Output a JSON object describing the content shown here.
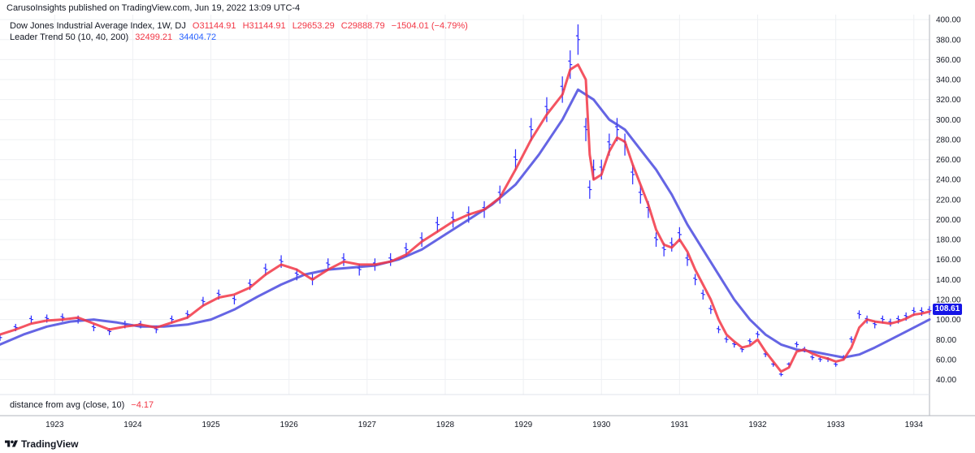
{
  "header": {
    "text": "CarusoInsights published on TradingView.com, Jun 19, 2022 13:09 UTC-4"
  },
  "legend": {
    "main": {
      "title": "Dow Jones Industrial Average Index, 1W, DJ",
      "open": "O31144.91",
      "high": "H31144.91",
      "low": "L29653.29",
      "close": "C29888.79",
      "change": "−1504.01 (−4.79%)"
    },
    "indicator": {
      "title": "Leader Trend 50 (10, 40, 200)",
      "value_red": "32499.21",
      "value_blue": "34404.72"
    }
  },
  "lower_indicator": {
    "title": "distance from avg (close, 10)",
    "value": "−4.17"
  },
  "price_tag": {
    "value": "108.61",
    "color": "#1515e6"
  },
  "footer": {
    "brand": "TradingView",
    "logo_icon": "tradingview-logo-icon"
  },
  "colors": {
    "bars": "#2a2aff",
    "short_ma": "#f23645",
    "long_ma": "#4a4adf",
    "grid": "#eef0f3"
  },
  "chart_data": {
    "type": "line",
    "title": "Dow Jones Industrial Average Index, 1W, DJ",
    "y_ticks": [
      40,
      60,
      80,
      100,
      120,
      140,
      160,
      180,
      200,
      220,
      240,
      260,
      280,
      300,
      320,
      340,
      360,
      380,
      400
    ],
    "y_tick_labels": [
      "40.00",
      "60.00",
      "80.00",
      "100.00",
      "120.00",
      "140.00",
      "160.00",
      "180.00",
      "200.00",
      "220.00",
      "240.00",
      "260.00",
      "280.00",
      "300.00",
      "320.00",
      "340.00",
      "360.00",
      "380.00",
      "400.00"
    ],
    "ylim": [
      25,
      405
    ],
    "x_range": [
      1922.3,
      1934.2
    ],
    "x_ticks": [
      1923,
      1924,
      1925,
      1926,
      1927,
      1928,
      1929,
      1930,
      1931,
      1932,
      1933,
      1934
    ],
    "x_tick_labels": [
      "1923",
      "1924",
      "1925",
      "1926",
      "1927",
      "1928",
      "1929",
      "1930",
      "1931",
      "1932",
      "1933",
      "1934"
    ],
    "grid": true,
    "series": [
      {
        "style": "ohlc-bars",
        "x": [
          1922.3,
          1922.5,
          1922.7,
          1922.9,
          1923.1,
          1923.3,
          1923.5,
          1923.7,
          1923.9,
          1924.1,
          1924.3,
          1924.5,
          1924.7,
          1924.9,
          1925.1,
          1925.3,
          1925.5,
          1925.7,
          1925.9,
          1926.1,
          1926.3,
          1926.5,
          1926.7,
          1926.9,
          1927.1,
          1927.3,
          1927.5,
          1927.7,
          1927.9,
          1928.1,
          1928.3,
          1928.5,
          1928.7,
          1928.9,
          1929.1,
          1929.3,
          1929.5,
          1929.6,
          1929.7,
          1929.8,
          1929.85,
          1929.9,
          1930.0,
          1930.1,
          1930.2,
          1930.3,
          1930.4,
          1930.5,
          1930.6,
          1930.7,
          1930.8,
          1930.9,
          1931.0,
          1931.1,
          1931.2,
          1931.3,
          1931.4,
          1931.5,
          1931.6,
          1931.7,
          1931.8,
          1931.9,
          1932.0,
          1932.1,
          1932.2,
          1932.3,
          1932.4,
          1932.5,
          1932.6,
          1932.7,
          1932.8,
          1932.9,
          1933.0,
          1933.1,
          1933.2,
          1933.3,
          1933.4,
          1933.5,
          1933.6,
          1933.7,
          1933.8,
          1933.9,
          1934.0,
          1934.1,
          1934.2
        ],
        "values": [
          82,
          92,
          100,
          101,
          102,
          100,
          92,
          88,
          95,
          95,
          90,
          100,
          105,
          118,
          125,
          120,
          135,
          150,
          158,
          145,
          140,
          155,
          160,
          150,
          155,
          160,
          170,
          180,
          195,
          200,
          205,
          210,
          225,
          260,
          290,
          310,
          330,
          355,
          380,
          290,
          230,
          250,
          250,
          275,
          290,
          275,
          245,
          225,
          210,
          180,
          170,
          175,
          185,
          160,
          140,
          125,
          110,
          90,
          80,
          75,
          70,
          78,
          85,
          65,
          55,
          45,
          55,
          75,
          70,
          62,
          60,
          60,
          55,
          62,
          80,
          105,
          100,
          95,
          100,
          97,
          100,
          103,
          108,
          108,
          109
        ]
      },
      {
        "style": "line",
        "color": "#f23645",
        "x": [
          1922.3,
          1922.5,
          1922.7,
          1922.9,
          1923.1,
          1923.3,
          1923.5,
          1923.7,
          1923.9,
          1924.1,
          1924.3,
          1924.5,
          1924.7,
          1924.9,
          1925.1,
          1925.3,
          1925.5,
          1925.7,
          1925.9,
          1926.1,
          1926.3,
          1926.5,
          1926.7,
          1926.9,
          1927.1,
          1927.3,
          1927.5,
          1927.7,
          1927.9,
          1928.1,
          1928.3,
          1928.5,
          1928.7,
          1928.9,
          1929.1,
          1929.3,
          1929.5,
          1929.6,
          1929.7,
          1929.8,
          1929.85,
          1929.9,
          1930.0,
          1930.1,
          1930.2,
          1930.3,
          1930.4,
          1930.5,
          1930.6,
          1930.7,
          1930.8,
          1930.9,
          1931.0,
          1931.1,
          1931.2,
          1931.3,
          1931.4,
          1931.5,
          1931.6,
          1931.7,
          1931.8,
          1931.9,
          1932.0,
          1932.1,
          1932.2,
          1932.3,
          1932.4,
          1932.5,
          1932.6,
          1932.7,
          1932.8,
          1932.9,
          1933.0,
          1933.1,
          1933.2,
          1933.3,
          1933.4,
          1933.5,
          1933.6,
          1933.7,
          1933.8,
          1933.9,
          1934.0,
          1934.1,
          1934.2
        ],
        "values": [
          85,
          90,
          96,
          99,
          100,
          102,
          96,
          90,
          93,
          95,
          92,
          97,
          102,
          114,
          122,
          125,
          132,
          145,
          155,
          150,
          140,
          150,
          158,
          155,
          155,
          158,
          165,
          178,
          188,
          198,
          205,
          210,
          222,
          250,
          280,
          305,
          325,
          350,
          355,
          340,
          265,
          240,
          245,
          268,
          282,
          278,
          255,
          235,
          215,
          190,
          175,
          172,
          180,
          168,
          150,
          135,
          120,
          100,
          85,
          78,
          72,
          74,
          80,
          68,
          58,
          48,
          52,
          68,
          70,
          66,
          63,
          61,
          58,
          60,
          72,
          92,
          100,
          98,
          97,
          96,
          98,
          101,
          105,
          106,
          108
        ]
      },
      {
        "style": "line",
        "color": "#4a4adf",
        "x": [
          1922.3,
          1922.6,
          1922.9,
          1923.2,
          1923.5,
          1923.8,
          1924.1,
          1924.4,
          1924.7,
          1925.0,
          1925.3,
          1925.6,
          1925.9,
          1926.2,
          1926.5,
          1926.8,
          1927.1,
          1927.4,
          1927.7,
          1928.0,
          1928.3,
          1928.6,
          1928.9,
          1929.2,
          1929.5,
          1929.7,
          1929.9,
          1930.1,
          1930.3,
          1930.5,
          1930.7,
          1930.9,
          1931.1,
          1931.3,
          1931.5,
          1931.7,
          1931.9,
          1932.1,
          1932.3,
          1932.5,
          1932.7,
          1932.9,
          1933.1,
          1933.3,
          1933.5,
          1933.7,
          1933.9,
          1934.2
        ],
        "values": [
          75,
          85,
          93,
          98,
          100,
          97,
          93,
          93,
          95,
          100,
          110,
          123,
          135,
          145,
          150,
          152,
          154,
          160,
          170,
          185,
          200,
          215,
          235,
          265,
          300,
          330,
          320,
          300,
          290,
          270,
          250,
          225,
          195,
          170,
          145,
          120,
          100,
          85,
          75,
          70,
          68,
          65,
          62,
          65,
          72,
          80,
          88,
          100
        ]
      }
    ]
  }
}
